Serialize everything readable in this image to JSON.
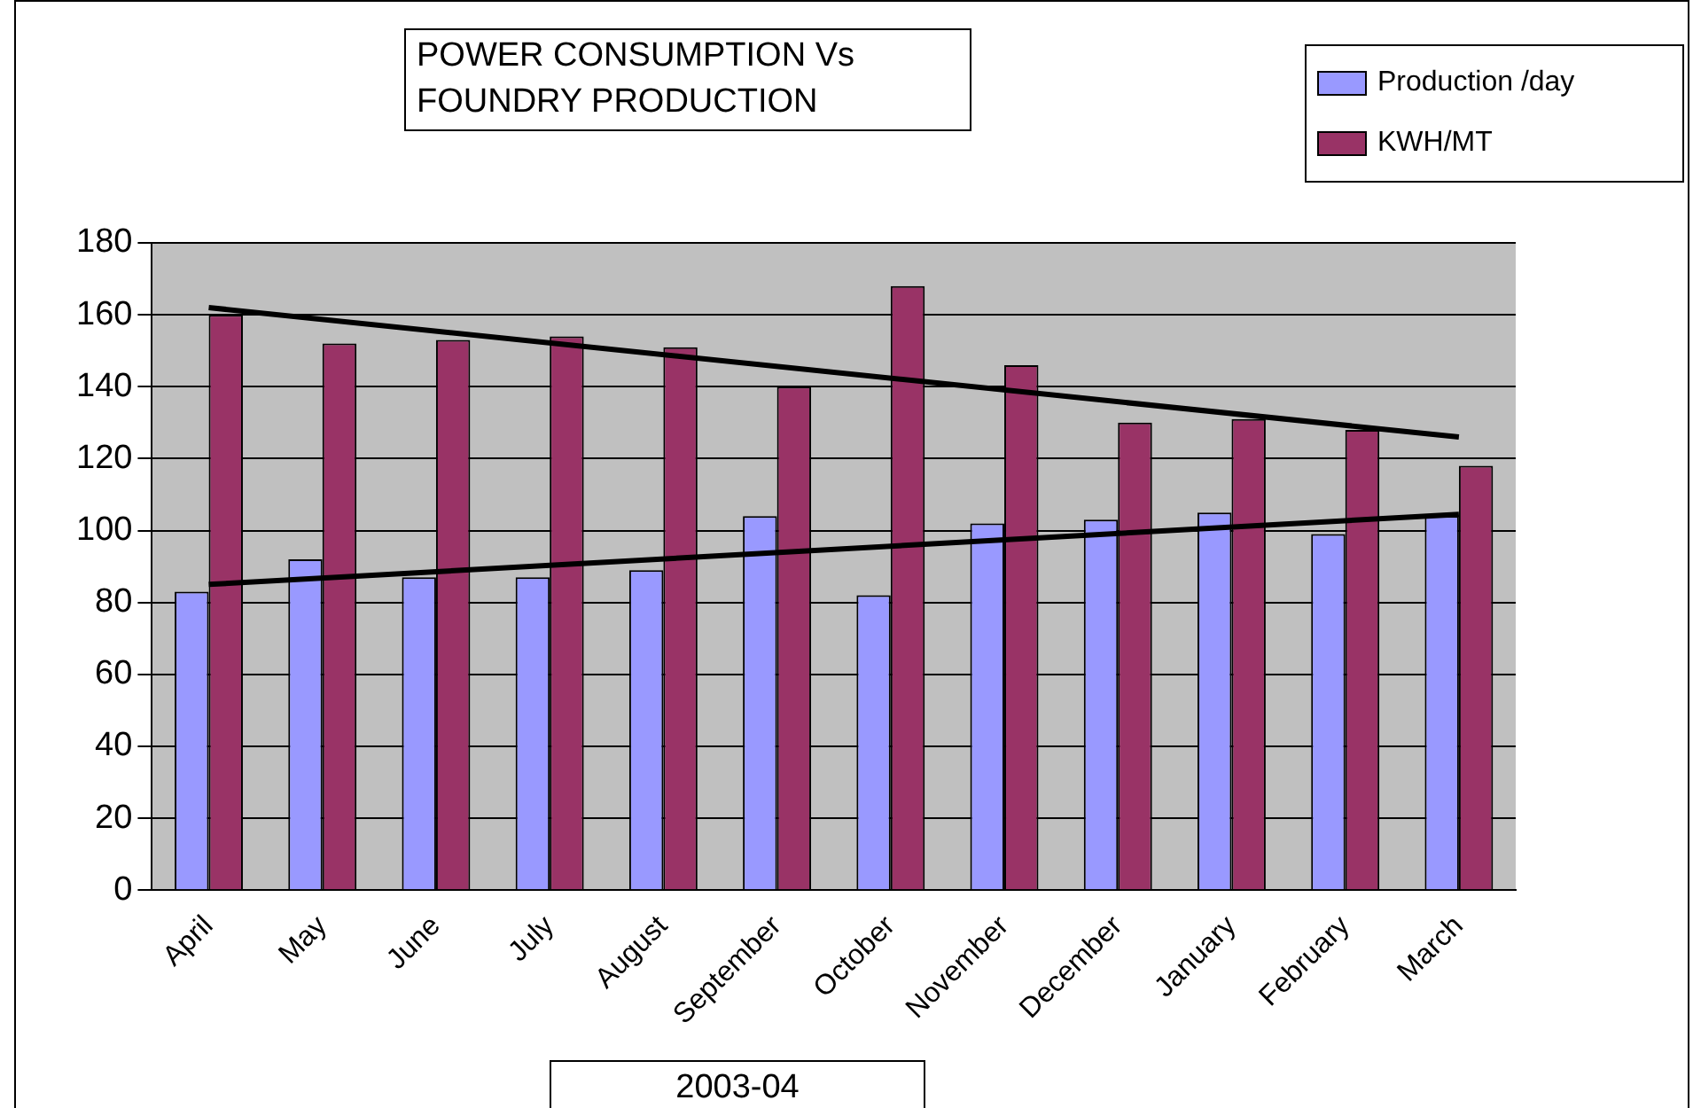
{
  "chart_data": {
    "type": "bar",
    "title": "POWER CONSUMPTION Vs FOUNDRY PRODUCTION",
    "xlabel": "2003-04",
    "categories": [
      "April",
      "May",
      "June",
      "July",
      "August",
      "September",
      "October",
      "November",
      "December",
      "January",
      "February",
      "March"
    ],
    "series": [
      {
        "name": "Production /day",
        "color": "#9999ff",
        "values": [
          83,
          92,
          87,
          87,
          89,
          104,
          82,
          102,
          103,
          105,
          99,
          104
        ]
      },
      {
        "name": "KWH/MT",
        "color": "#993366",
        "values": [
          160,
          152,
          153,
          154,
          151,
          140,
          168,
          146,
          130,
          131,
          128,
          118
        ]
      },
      {
        "type": "line",
        "color": "#000000",
        "x": [
          "April",
          "March"
        ],
        "values": [
          162,
          126
        ]
      },
      {
        "type": "line",
        "color": "#000000",
        "x": [
          "April",
          "March"
        ],
        "values": [
          85,
          104.5
        ]
      }
    ],
    "ylim": [
      0,
      180
    ],
    "yticks": [
      0,
      20,
      40,
      60,
      80,
      100,
      120,
      140,
      160,
      180
    ],
    "grid": "y",
    "legend": "top right",
    "marker": "none"
  }
}
